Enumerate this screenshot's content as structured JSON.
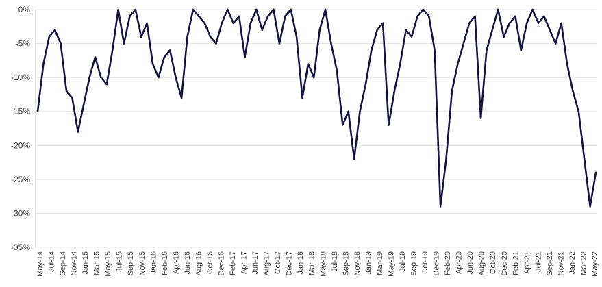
{
  "chart_data": {
    "type": "line",
    "title": "",
    "xlabel": "",
    "ylabel": "",
    "ylim": [
      -0.35,
      0.0
    ],
    "y_ticks": [
      0,
      -0.05,
      -0.1,
      -0.15,
      -0.2,
      -0.25,
      -0.3,
      -0.35
    ],
    "y_tick_labels": [
      "0%",
      "-5%",
      "-10%",
      "-15%",
      "-20%",
      "-25%",
      "-30%",
      "-35%"
    ],
    "x_tick_labels": [
      "May-14",
      "Jul-14",
      "Sep-14",
      "Nov-14",
      "Jan-15",
      "Mar-15",
      "May-15",
      "Jul-15",
      "Sep-15",
      "Nov-15",
      "Jan-16",
      "Feb-16",
      "Apr-16",
      "Jun-16",
      "Aug-16",
      "Oct-16",
      "Dec-16",
      "Feb-17",
      "Apr-17",
      "Jun-17",
      "Aug-17",
      "Oct-17",
      "Dec-17",
      "Jan-18",
      "Mar-18",
      "May-18",
      "Jul-18",
      "Sep-18",
      "Nov-18",
      "Jan-19",
      "Mar-19",
      "May-19",
      "Jul-19",
      "Sep-19",
      "Oct-19",
      "Dec-19",
      "Feb-20",
      "Apr-20",
      "Jun-20",
      "Aug-20",
      "Oct-20",
      "Dec-20",
      "Feb-21",
      "Apr-21",
      "Jul-21",
      "Sep-21",
      "Nov-21",
      "Jan-22",
      "Mar-22",
      "May-22"
    ],
    "grid": true,
    "legend": "none",
    "series_color": "#131440",
    "series": [
      {
        "name": "",
        "x": [
          "2014-05",
          "2014-06",
          "2014-07",
          "2014-08",
          "2014-09",
          "2014-10",
          "2014-11",
          "2014-12",
          "2015-01",
          "2015-02",
          "2015-03",
          "2015-04",
          "2015-05",
          "2015-06",
          "2015-07",
          "2015-08",
          "2015-09",
          "2015-10",
          "2015-11",
          "2015-12",
          "2016-01",
          "2016-02",
          "2016-03",
          "2016-04",
          "2016-05",
          "2016-06",
          "2016-07",
          "2016-08",
          "2016-09",
          "2016-10",
          "2016-11",
          "2016-12",
          "2017-01",
          "2017-02",
          "2017-03",
          "2017-04",
          "2017-05",
          "2017-06",
          "2017-07",
          "2017-08",
          "2017-09",
          "2017-10",
          "2017-11",
          "2017-12",
          "2018-01",
          "2018-02",
          "2018-03",
          "2018-04",
          "2018-05",
          "2018-06",
          "2018-07",
          "2018-08",
          "2018-09",
          "2018-10",
          "2018-11",
          "2018-12",
          "2019-01",
          "2019-02",
          "2019-03",
          "2019-04",
          "2019-05",
          "2019-06",
          "2019-07",
          "2019-08",
          "2019-09",
          "2019-10",
          "2019-11",
          "2019-12",
          "2020-01",
          "2020-02",
          "2020-03",
          "2020-04",
          "2020-05",
          "2020-06",
          "2020-07",
          "2020-08",
          "2020-09",
          "2020-10",
          "2020-11",
          "2020-12",
          "2021-01",
          "2021-02",
          "2021-03",
          "2021-04",
          "2021-05",
          "2021-06",
          "2021-07",
          "2021-08",
          "2021-09",
          "2021-10",
          "2021-11",
          "2021-12",
          "2022-01",
          "2022-02",
          "2022-03",
          "2022-04",
          "2022-05",
          "2022-06"
        ],
        "values": [
          -0.15,
          -0.08,
          -0.04,
          -0.03,
          -0.05,
          -0.12,
          -0.13,
          -0.18,
          -0.14,
          -0.1,
          -0.07,
          -0.1,
          -0.11,
          -0.06,
          0.0,
          -0.05,
          -0.01,
          0.0,
          -0.04,
          -0.02,
          -0.08,
          -0.1,
          -0.07,
          -0.06,
          -0.1,
          -0.13,
          -0.04,
          0.0,
          -0.01,
          -0.02,
          -0.04,
          -0.05,
          -0.02,
          0.0,
          -0.02,
          -0.01,
          -0.07,
          -0.02,
          0.0,
          -0.03,
          -0.01,
          0.0,
          -0.05,
          -0.01,
          0.0,
          -0.04,
          -0.13,
          -0.08,
          -0.1,
          -0.03,
          0.0,
          -0.05,
          -0.09,
          -0.17,
          -0.15,
          -0.22,
          -0.15,
          -0.11,
          -0.06,
          -0.03,
          -0.02,
          -0.17,
          -0.12,
          -0.08,
          -0.03,
          -0.04,
          -0.01,
          0.0,
          -0.01,
          -0.06,
          -0.29,
          -0.22,
          -0.12,
          -0.08,
          -0.05,
          -0.02,
          -0.01,
          -0.16,
          -0.06,
          -0.03,
          0.0,
          -0.04,
          -0.02,
          -0.01,
          -0.06,
          -0.02,
          0.0,
          -0.02,
          -0.01,
          -0.03,
          -0.05,
          -0.02,
          -0.08,
          -0.12,
          -0.15,
          -0.22,
          -0.29,
          -0.24
        ]
      }
    ]
  }
}
